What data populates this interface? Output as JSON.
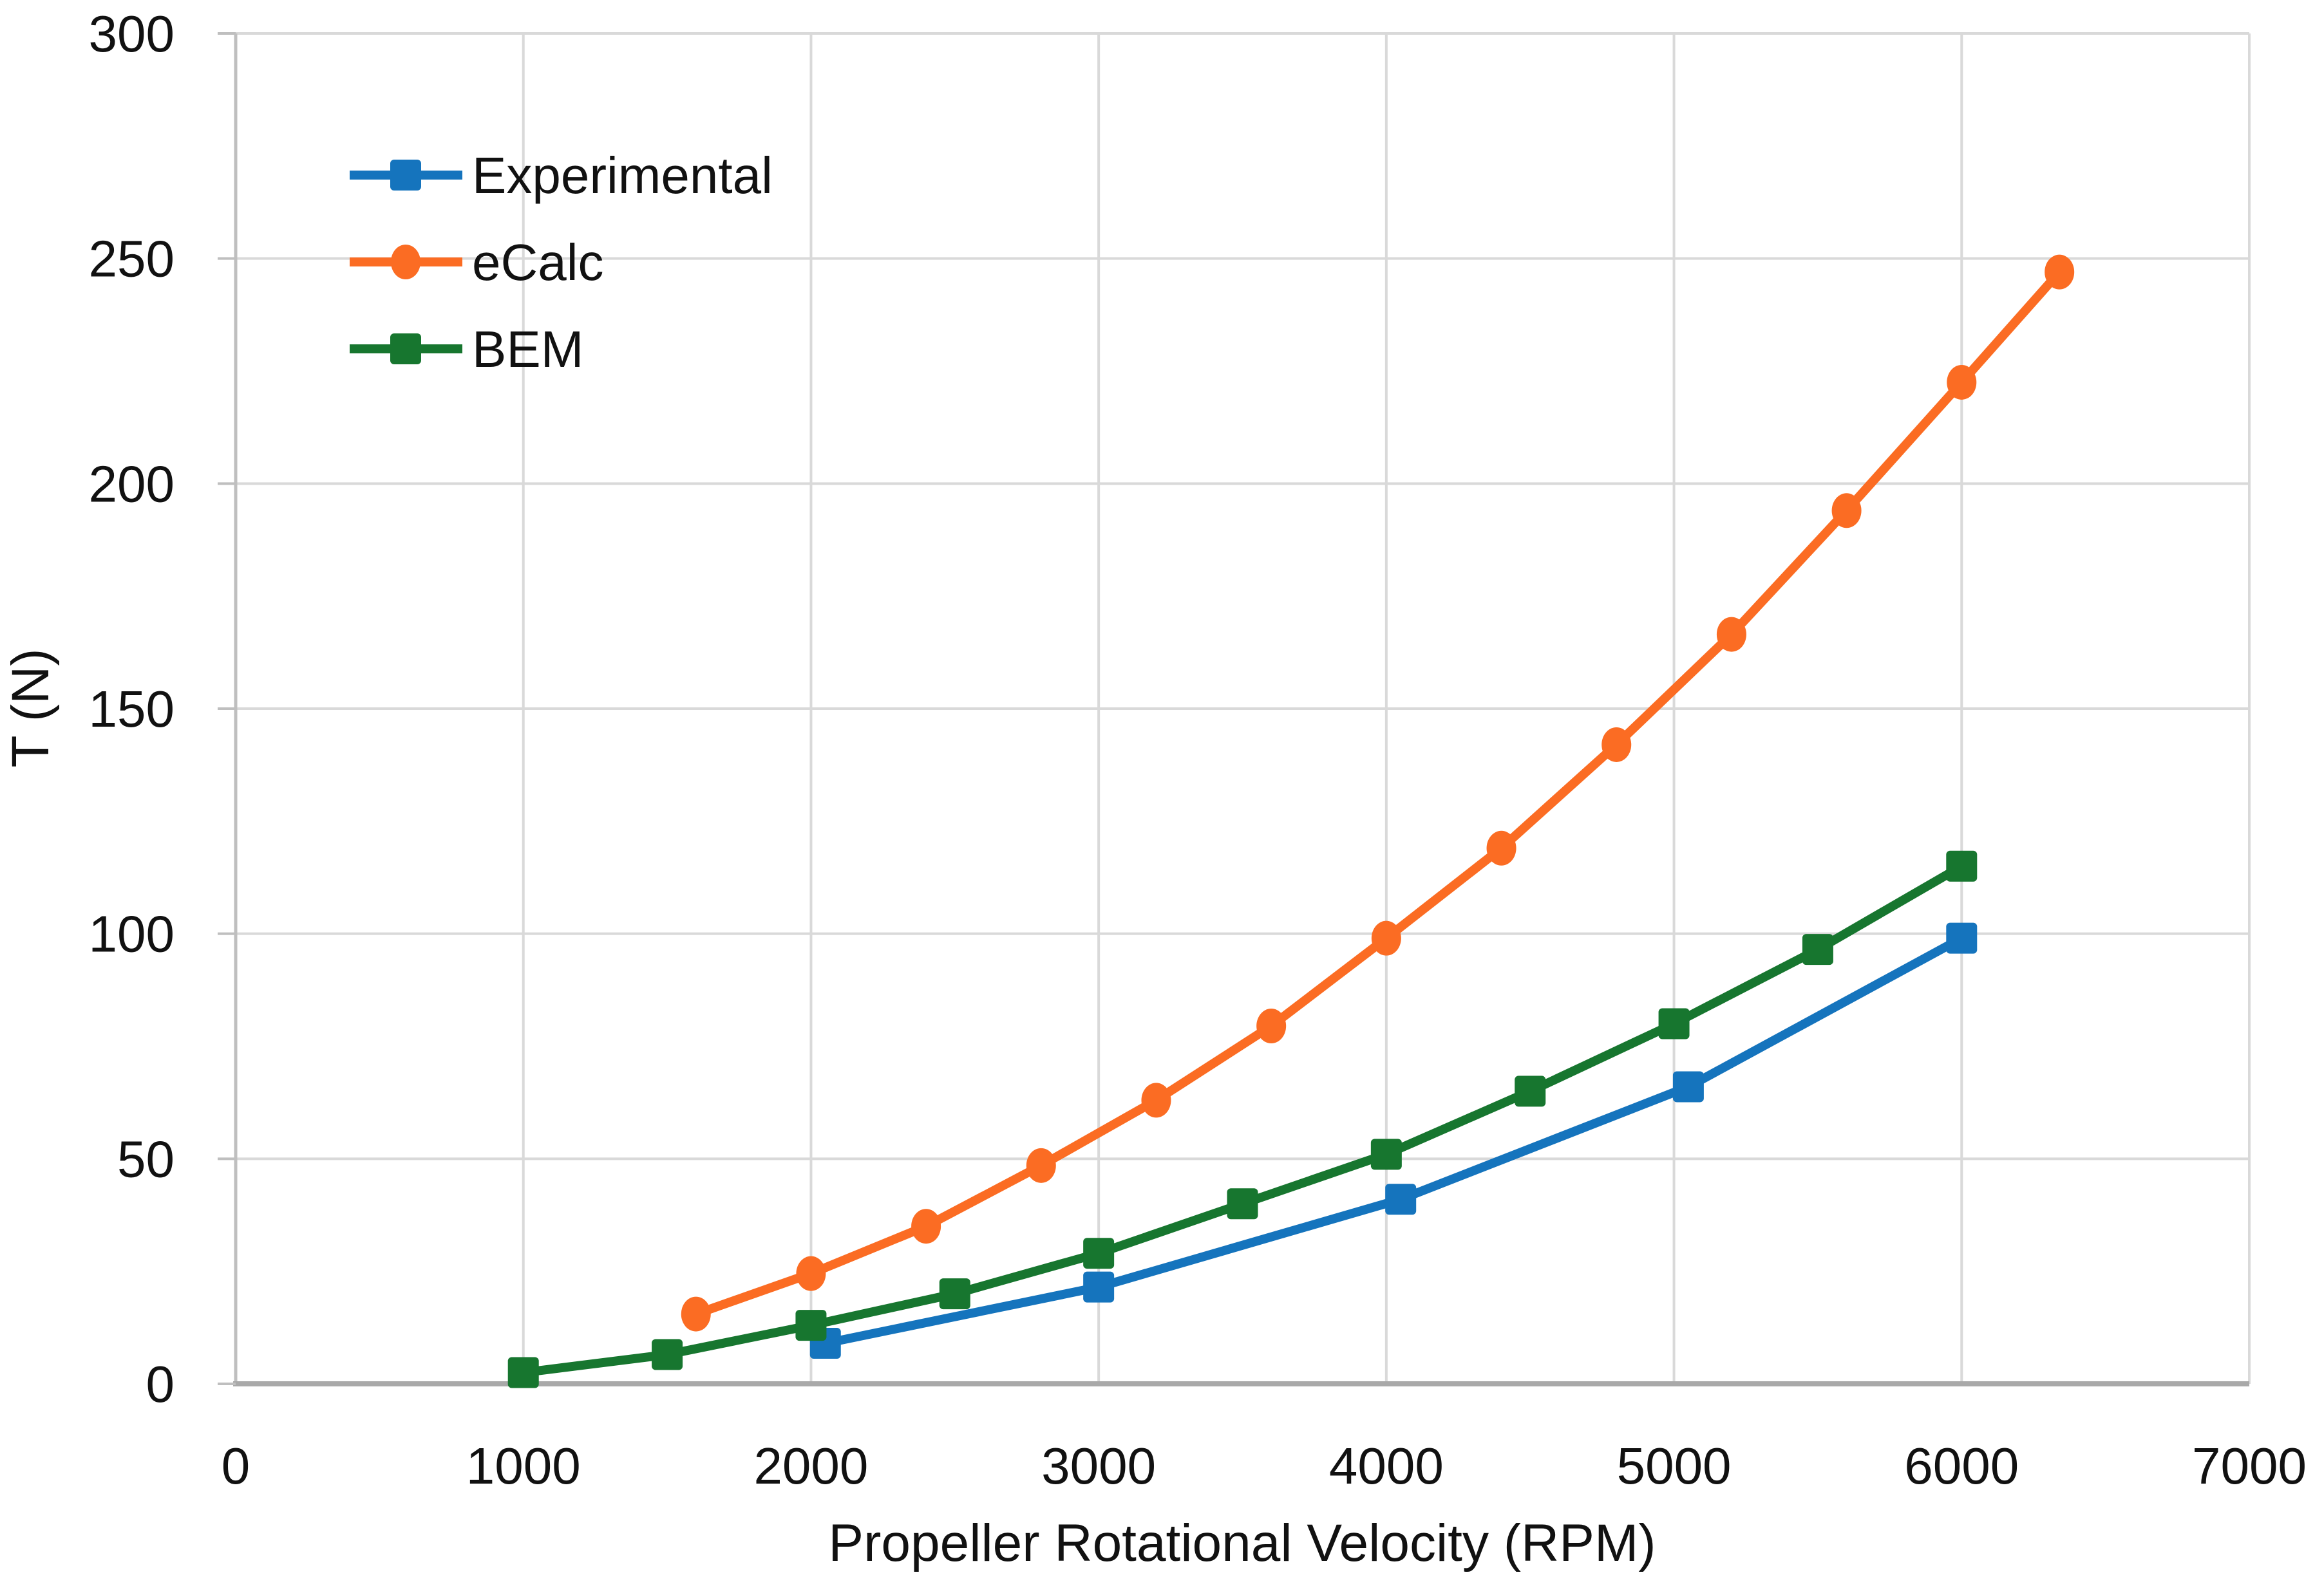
{
  "figure": {
    "background": "#ffffff",
    "text_color": "#111111",
    "gridline_color": "#d9d9d9",
    "axis_line_color": "#bfbfbf",
    "x_axis_line_color": "#a9a9a9"
  },
  "chart_data": {
    "type": "line",
    "title": "",
    "xlabel": "Propeller Rotational Velocity (RPM)",
    "ylabel": "T (N)",
    "xlim": [
      0,
      7000
    ],
    "ylim": [
      0,
      300
    ],
    "x_ticks": [
      0,
      1000,
      2000,
      3000,
      4000,
      5000,
      6000,
      7000
    ],
    "y_ticks": [
      0,
      50,
      100,
      150,
      200,
      250,
      300
    ],
    "grid": "on",
    "legend_position": "inside top-left",
    "series": [
      {
        "name": "Experimental",
        "color": "#1574bd",
        "marker": "square",
        "x": [
          2050,
          3000,
          4050,
          5050,
          6000
        ],
        "y": [
          9,
          21.5,
          41,
          66,
          99
        ]
      },
      {
        "name": "eCalc",
        "color": "#fb6c23",
        "marker": "circle",
        "x": [
          1600,
          2000,
          2400,
          2800,
          3200,
          3600,
          4000,
          4400,
          4800,
          5200,
          5600,
          6000,
          6340
        ],
        "y": [
          15.5,
          24.5,
          35,
          48.5,
          63,
          79.5,
          99,
          119,
          142,
          166.5,
          194,
          222.5,
          247
        ]
      },
      {
        "name": "BEM",
        "color": "#17762f",
        "marker": "square",
        "x": [
          1000,
          1500,
          2000,
          2500,
          3000,
          3500,
          4000,
          4500,
          5000,
          5500,
          6000
        ],
        "y": [
          2.5,
          6.5,
          13,
          20,
          29,
          40,
          51,
          65,
          80,
          96.5,
          115
        ]
      }
    ]
  }
}
